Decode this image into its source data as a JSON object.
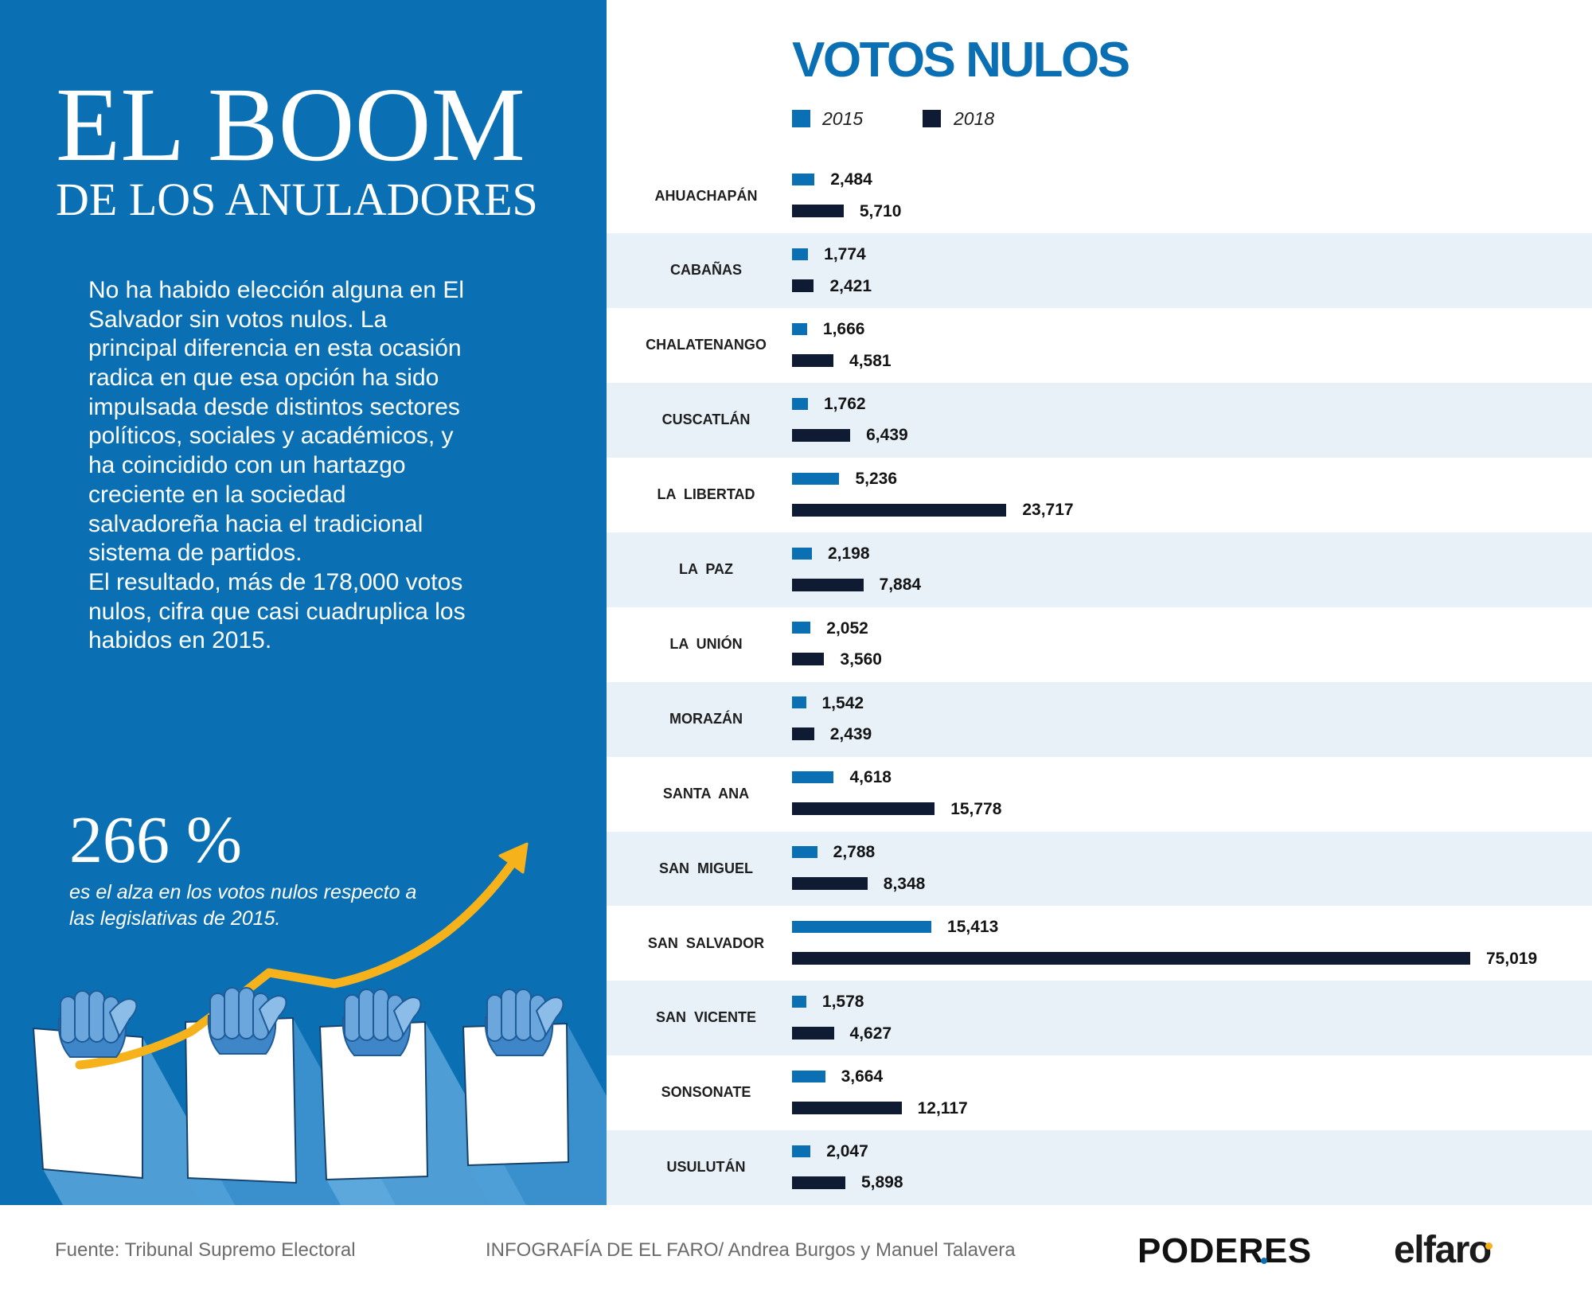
{
  "hero": {
    "title": "EL BOOM",
    "subtitle": "DE LOS ANULADORES"
  },
  "intro": {
    "lines": [
      "No ha habido elección alguna en El",
      "Salvador sin votos nulos. La",
      "principal diferencia en esta ocasión",
      "radica en que esa opción ha sido",
      "impulsada desde distintos sectores",
      "políticos, sociales y académicos, y",
      "ha coincidido con un hartazgo",
      "creciente en la sociedad",
      "salvadoreña hacia el tradicional",
      "sistema de partidos.",
      "El resultado, más de 178,000 votos",
      "nulos, cifra que casi cuadruplica los",
      "habidos en 2015."
    ]
  },
  "stat": {
    "value": "266 %",
    "caption": [
      "es el alza en los votos nulos respecto a",
      "las legislativas de 2015."
    ]
  },
  "illustration": {
    "icons": [
      "ballot-paper-icon",
      "hand-icon",
      "growth-arrow-icon"
    ]
  },
  "colors": {
    "panel": "#0b70b3",
    "band": "#e8f1f8",
    "accent": "#f5b21b",
    "dark": "#0f1a33"
  },
  "chart_data": {
    "type": "bar",
    "orientation": "horizontal",
    "title": "VOTOS NULOS",
    "categories": [
      "AHUACHAPÁN",
      "CABAÑAS",
      "CHALATENANGO",
      "CUSCATLÁN",
      "LA LIBERTAD",
      "LA PAZ",
      "LA UNIÓN",
      "MORAZÁN",
      "SANTA ANA",
      "SAN MIGUEL",
      "SAN SALVADOR",
      "SAN VICENTE",
      "SONSONATE",
      "USULUTÁN"
    ],
    "series": [
      {
        "name": "2015",
        "color": "#0b70b3",
        "values": [
          2484,
          1774,
          1666,
          1762,
          5236,
          2198,
          2052,
          1542,
          4618,
          2788,
          15413,
          1578,
          3664,
          2047
        ]
      },
      {
        "name": "2018",
        "color": "#0f1a33",
        "values": [
          5710,
          2421,
          4581,
          6439,
          23717,
          7884,
          3560,
          2439,
          15778,
          8348,
          75019,
          4627,
          12117,
          5898
        ]
      }
    ],
    "xlim": [
      0,
      75019
    ],
    "grid": false,
    "legend": "top-left",
    "value_labels": true
  },
  "footer": {
    "source": "Fuente: Tribunal Supremo Electoral",
    "credit": "INFOGRAFÍA DE EL FARO/ Andrea Burgos y Manuel Talavera"
  },
  "logos": {
    "poderes": "PODERES",
    "elfaro": "elfaro"
  }
}
